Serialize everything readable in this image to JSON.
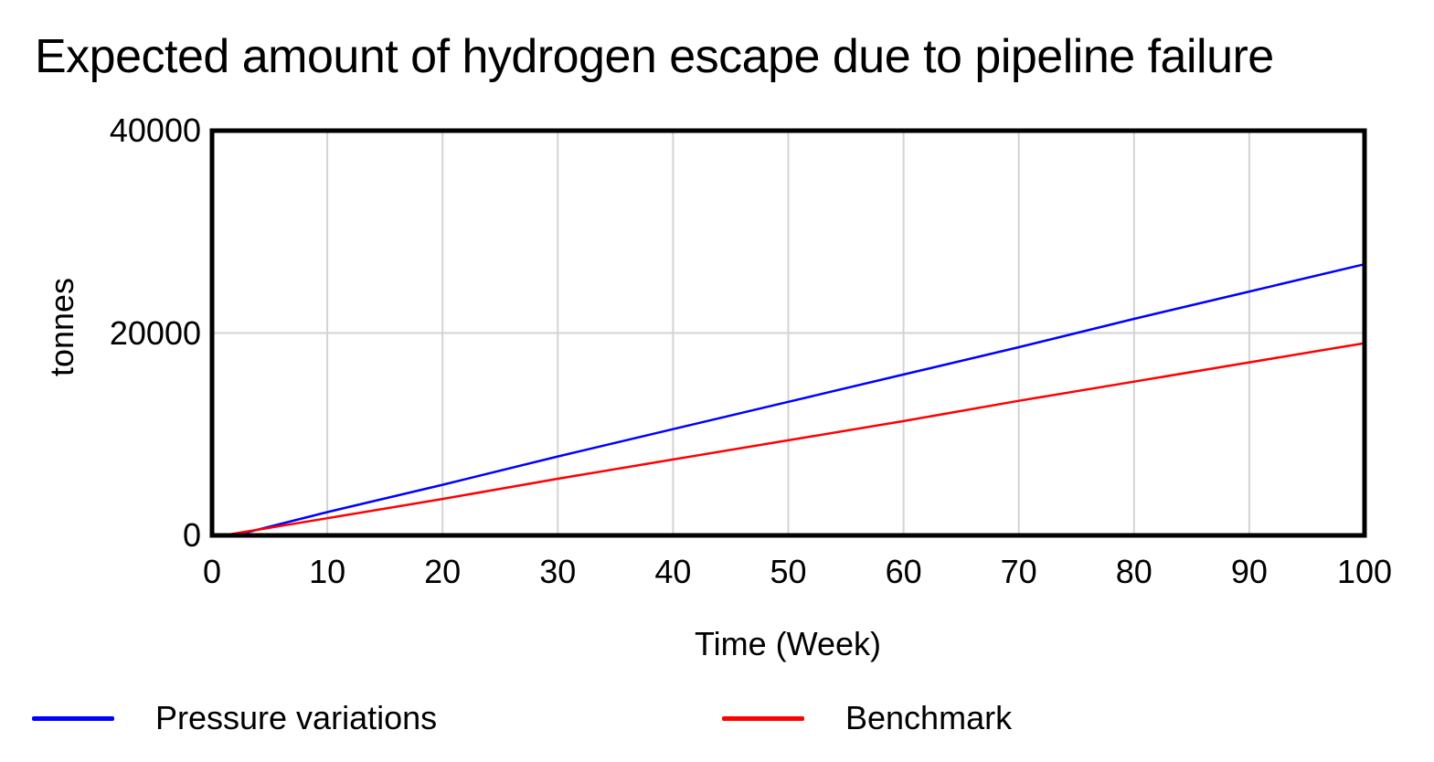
{
  "chart_data": {
    "type": "line",
    "title": "Expected amount of hydrogen escape due to pipeline failure",
    "xlabel": "Time (Week)",
    "ylabel": "tonnes",
    "xlim": [
      0,
      100
    ],
    "ylim": [
      0,
      40000
    ],
    "x_ticks": [
      0,
      10,
      20,
      30,
      40,
      50,
      60,
      70,
      80,
      90,
      100
    ],
    "y_ticks": [
      0,
      20000,
      40000
    ],
    "grid": true,
    "legend_position": "bottom",
    "colors": {
      "axis": "#000000",
      "grid": "#d3d3d3",
      "text": "#000000",
      "background": "#ffffff"
    },
    "series": [
      {
        "name": "Pressure variations",
        "color": "#0000ff",
        "points": [
          [
            0,
            0
          ],
          [
            2,
            0
          ],
          [
            10,
            2300
          ],
          [
            20,
            5000
          ],
          [
            30,
            7800
          ],
          [
            40,
            10500
          ],
          [
            50,
            13200
          ],
          [
            60,
            15900
          ],
          [
            70,
            18600
          ],
          [
            80,
            21400
          ],
          [
            90,
            24100
          ],
          [
            100,
            26800
          ]
        ]
      },
      {
        "name": "Benchmark",
        "color": "#ff0000",
        "points": [
          [
            0,
            0
          ],
          [
            1,
            0
          ],
          [
            10,
            1700
          ],
          [
            20,
            3600
          ],
          [
            30,
            5600
          ],
          [
            40,
            7500
          ],
          [
            50,
            9400
          ],
          [
            60,
            11300
          ],
          [
            70,
            13300
          ],
          [
            80,
            15200
          ],
          [
            90,
            17100
          ],
          [
            100,
            19000
          ]
        ]
      }
    ]
  }
}
